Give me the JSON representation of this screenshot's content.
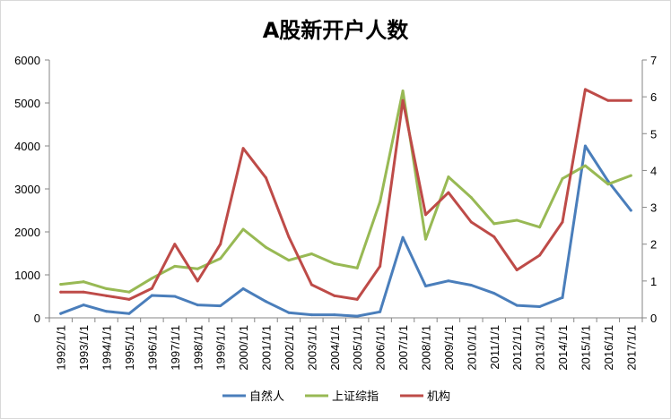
{
  "chart_data": {
    "type": "line",
    "title": "A股新开户人数",
    "xlabel": "",
    "ylabel": "",
    "x": [
      "1992/1/1",
      "1993/1/1",
      "1994/1/1",
      "1995/1/1",
      "1996/1/1",
      "1997/1/1",
      "1998/1/1",
      "1999/1/1",
      "2000/1/1",
      "2001/1/1",
      "2002/1/1",
      "2003/1/1",
      "2004/1/1",
      "2005/1/1",
      "2006/1/1",
      "2007/1/1",
      "2008/1/1",
      "2009/1/1",
      "2010/1/1",
      "2011/1/1",
      "2012/1/1",
      "2013/1/1",
      "2014/1/1",
      "2015/1/1",
      "2016/1/1",
      "2017/1/1"
    ],
    "ylim_left": [
      0,
      6000
    ],
    "yticks_left": [
      "0",
      "1000",
      "2000",
      "3000",
      "4000",
      "5000",
      "6000"
    ],
    "ylim_right": [
      0,
      7
    ],
    "yticks_right": [
      "0",
      "1",
      "2",
      "3",
      "4",
      "5",
      "6",
      "7"
    ],
    "grid": false,
    "legend_position": "bottom",
    "series": [
      {
        "name": "自然人",
        "axis": "left",
        "color": "#4a7ebb",
        "values": [
          100,
          300,
          150,
          100,
          520,
          500,
          300,
          280,
          680,
          380,
          120,
          70,
          70,
          40,
          140,
          1870,
          740,
          860,
          760,
          570,
          290,
          260,
          470,
          4000,
          3180,
          2500
        ]
      },
      {
        "name": "上证综指",
        "axis": "left",
        "color": "#98b954",
        "values": [
          780,
          840,
          680,
          600,
          920,
          1200,
          1140,
          1380,
          2060,
          1640,
          1340,
          1490,
          1260,
          1160,
          2700,
          5280,
          1830,
          3280,
          2800,
          2190,
          2270,
          2110,
          3240,
          3540,
          3110,
          3310
        ]
      },
      {
        "name": "机构",
        "axis": "right",
        "color": "#be4b48",
        "values": [
          0.7,
          0.7,
          0.6,
          0.5,
          0.8,
          2.0,
          1.0,
          2.0,
          4.6,
          3.8,
          2.2,
          0.9,
          0.6,
          0.5,
          1.4,
          5.9,
          2.8,
          3.4,
          2.6,
          2.2,
          1.3,
          1.7,
          2.6,
          6.2,
          5.9,
          5.9
        ]
      }
    ]
  }
}
